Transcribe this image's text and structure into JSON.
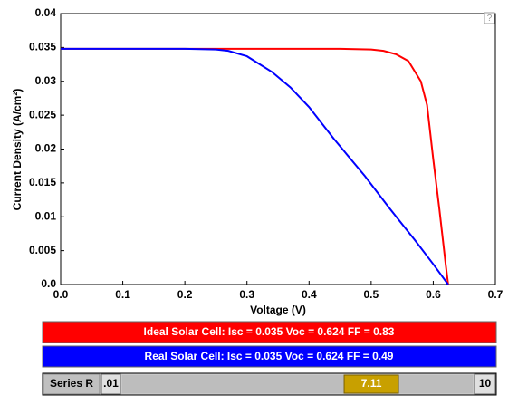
{
  "chart_data": {
    "type": "line",
    "xlabel": "Voltage (V)",
    "ylabel": "Current Density (A/cm²)",
    "series": [
      {
        "name": "Ideal Solar Cell",
        "color": "#ff0000",
        "x": [
          0,
          0.1,
          0.2,
          0.3,
          0.4,
          0.45,
          0.5,
          0.52,
          0.54,
          0.56,
          0.58,
          0.59,
          0.6,
          0.61,
          0.62,
          0.624
        ],
        "values": [
          0.0348,
          0.0348,
          0.0348,
          0.0348,
          0.0348,
          0.0348,
          0.0347,
          0.0345,
          0.034,
          0.033,
          0.03,
          0.0265,
          0.0185,
          0.011,
          0.003,
          0
        ]
      },
      {
        "name": "Real Solar Cell",
        "color": "#0000ff",
        "x": [
          0,
          0.1,
          0.2,
          0.25,
          0.27,
          0.3,
          0.34,
          0.37,
          0.4,
          0.44,
          0.49,
          0.53,
          0.57,
          0.6,
          0.624
        ],
        "values": [
          0.0348,
          0.0348,
          0.0348,
          0.0347,
          0.0345,
          0.0337,
          0.0314,
          0.0291,
          0.0262,
          0.0215,
          0.016,
          0.0112,
          0.0066,
          0.003,
          0
        ]
      }
    ],
    "xlim": [
      0,
      0.7
    ],
    "ylim": [
      0,
      0.04
    ],
    "xticks": [
      {
        "value": 0,
        "label": "0.0"
      },
      0.1,
      0.2,
      0.3,
      0.4,
      0.5,
      0.6,
      0.7
    ],
    "yticks": [
      {
        "value": 0,
        "label": "0.0"
      },
      0.005,
      0.01,
      0.015,
      0.02,
      0.025,
      0.03,
      0.035,
      0.04
    ],
    "grid": false
  },
  "panels": [
    {
      "text": "Ideal Solar Cell:  Isc = 0.035   Voc = 0.624   FF = 0.83",
      "color": "#ff0000"
    },
    {
      "text": "Real Solar Cell:  Isc = 0.035   Voc = 0.624   FF = 0.49",
      "color": "#0000ff"
    }
  ],
  "slider": {
    "label": "Series R",
    "min": {
      "value": 0.01,
      "label": ".01"
    },
    "max": 10,
    "value": 7.11
  }
}
